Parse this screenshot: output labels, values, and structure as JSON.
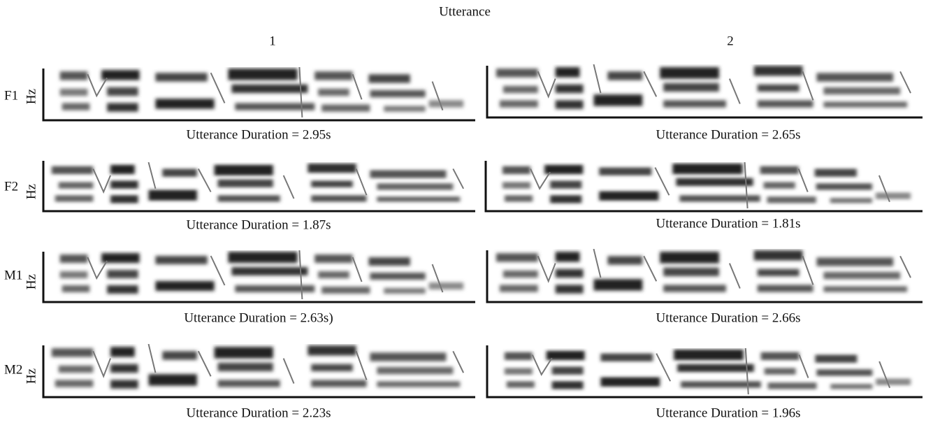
{
  "title": "Utterance",
  "columns": [
    "1",
    "2"
  ],
  "y_axis_label": "Hz",
  "rows": [
    {
      "label": "F1",
      "captions": [
        "Utterance Duration = 2.95s",
        "Utterance Duration = 2.65s"
      ]
    },
    {
      "label": "F2",
      "captions": [
        "Utterance Duration = 1.87s",
        "Utterance Duration = 1.81s"
      ]
    },
    {
      "label": "M1",
      "captions": [
        "Utterance Duration = 2.63s)",
        "Utterance Duration = 2.66s"
      ]
    },
    {
      "label": "M2",
      "captions": [
        "Utterance Duration = 2.23s",
        "Utterance Duration = 1.96s"
      ]
    }
  ]
}
